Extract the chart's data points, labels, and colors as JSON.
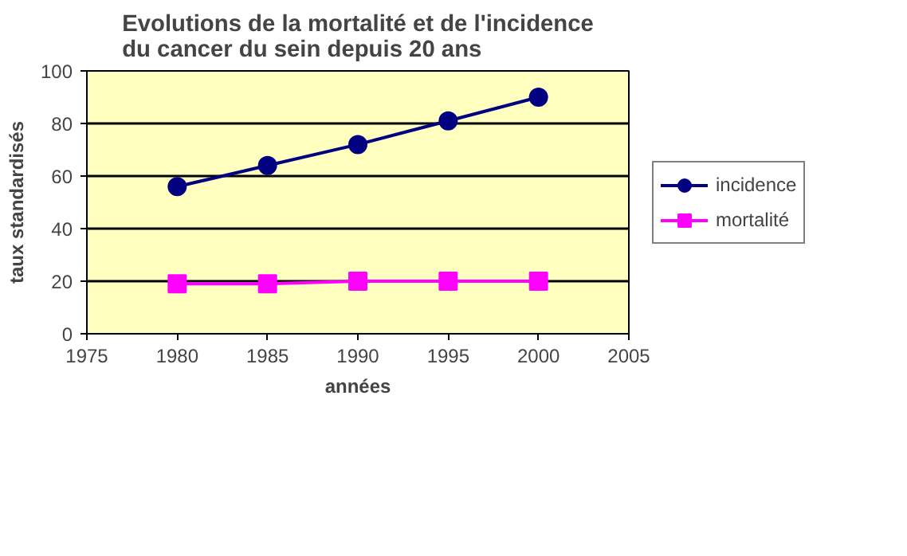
{
  "chart_data": {
    "type": "line",
    "title": "Evolutions de la mortalité et de l'incidence du cancer du sein depuis 20 ans",
    "xlabel": "années",
    "ylabel": "taux standardisés",
    "x": [
      1980,
      1985,
      1990,
      1995,
      2000
    ],
    "series": [
      {
        "name": "incidence",
        "color": "#000080",
        "marker": "circle",
        "values": [
          56,
          64,
          72,
          81,
          90
        ]
      },
      {
        "name": "mortalité",
        "color": "#ff00ff",
        "marker": "square",
        "values": [
          19,
          19,
          20,
          20,
          20
        ]
      }
    ],
    "xlim": [
      1975,
      2005
    ],
    "xticks": [
      1975,
      1980,
      1985,
      1990,
      1995,
      2000,
      2005
    ],
    "ylim": [
      0,
      100
    ],
    "yticks": [
      0,
      20,
      40,
      60,
      80,
      100
    ],
    "grid": "y",
    "legend": "right",
    "line_style": "solid"
  }
}
